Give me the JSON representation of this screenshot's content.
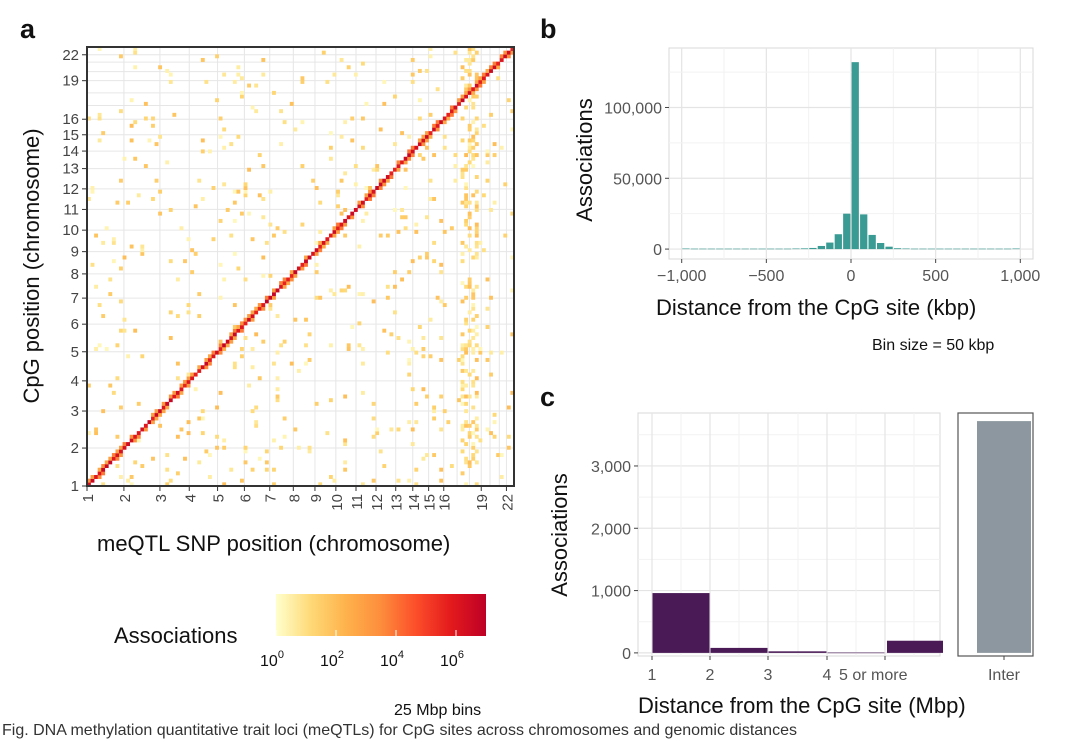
{
  "panels": {
    "a": {
      "letter": "a",
      "chart_data": {
        "type": "heatmap",
        "title": "",
        "xlabel": "meQTL SNP position (chromosome)",
        "ylabel": "CpG position (chromosome)",
        "x_ticks": [
          "1",
          "2",
          "3",
          "4",
          "5",
          "6",
          "7",
          "8",
          "9",
          "10",
          "11",
          "12",
          "13",
          "14",
          "15",
          "16",
          "19",
          "22"
        ],
        "y_ticks": [
          "1",
          "2",
          "3",
          "4",
          "5",
          "6",
          "7",
          "8",
          "9",
          "10",
          "11",
          "12",
          "13",
          "14",
          "15",
          "16",
          "19",
          "22"
        ],
        "chromosome_lengths_mbp": [
          249,
          243,
          198,
          191,
          181,
          171,
          159,
          146,
          141,
          136,
          135,
          133,
          115,
          107,
          102,
          90,
          83,
          80,
          59,
          63,
          48,
          51
        ],
        "colorbar": {
          "title": "Associations",
          "scale": "log10",
          "range_exponent": [
            0,
            7
          ],
          "tick_labels": [
            "10",
            "10",
            "10",
            "10"
          ],
          "tick_exponents": [
            "0",
            "2",
            "4",
            "6"
          ],
          "colors": [
            "#ffffcc",
            "#fed976",
            "#feb24c",
            "#fd8d3c",
            "#fc4e2a",
            "#e31a1c",
            "#bd0026"
          ]
        },
        "bin_note": "25 Mbp bins"
      }
    },
    "b": {
      "letter": "b",
      "chart_data": {
        "type": "bar",
        "title": "",
        "xlabel": "Distance from the CpG site (kbp)",
        "ylabel": "Associations",
        "x_ticks": [
          "−1,000",
          "−500",
          "0",
          "500",
          "1,000"
        ],
        "x_tick_values": [
          -1000,
          -500,
          0,
          500,
          1000
        ],
        "y_ticks": [
          "0",
          "50,000",
          "100,000"
        ],
        "y_tick_values": [
          0,
          50000,
          100000
        ],
        "xlim": [
          -1075,
          1075
        ],
        "ylim": [
          -7000,
          142000
        ],
        "bin_centers_kbp": [
          -975,
          -925,
          -875,
          -825,
          -775,
          -725,
          -675,
          -625,
          -575,
          -525,
          -475,
          -425,
          -375,
          -325,
          -275,
          -225,
          -175,
          -125,
          -75,
          -25,
          25,
          75,
          125,
          175,
          225,
          275,
          325,
          375,
          425,
          475,
          525,
          575,
          625,
          675,
          725,
          775,
          825,
          875,
          925,
          975
        ],
        "values": [
          400,
          300,
          300,
          300,
          300,
          300,
          300,
          300,
          300,
          300,
          300,
          300,
          300,
          400,
          500,
          800,
          2200,
          4600,
          10500,
          25000,
          132000,
          24500,
          10000,
          4300,
          1700,
          600,
          400,
          300,
          300,
          300,
          300,
          300,
          300,
          300,
          300,
          300,
          300,
          300,
          300,
          400
        ],
        "bar_color": "#3a9b94",
        "bin_note": "Bin size = 50 kbp"
      }
    },
    "c": {
      "letter": "c",
      "chart_data": {
        "type": "bar",
        "title": "",
        "xlabel": "Distance from the CpG site (Mbp)",
        "ylabel": "Associations",
        "x_ticks": [
          "1",
          "2",
          "3",
          "4",
          "5 or more"
        ],
        "y_ticks": [
          "0",
          "1,000",
          "2,000",
          "3,000"
        ],
        "y_tick_values": [
          0,
          1000,
          2000,
          3000
        ],
        "ylim": [
          -50,
          3850
        ],
        "bars": [
          {
            "label": "1–2",
            "value": 960
          },
          {
            "label": "2–3",
            "value": 80
          },
          {
            "label": "3–4",
            "value": 25
          },
          {
            "label": "4–5",
            "value": 5
          },
          {
            "label": "5 or more",
            "value": 195
          }
        ],
        "bar_color": "#4a1a57",
        "inter": {
          "label": "Inter",
          "value": 3720,
          "color": "#8c979f"
        }
      }
    }
  },
  "caption": "Fig. DNA methylation quantitative trait loci (meQTLs) for CpG sites across chromosomes and genomic distances"
}
